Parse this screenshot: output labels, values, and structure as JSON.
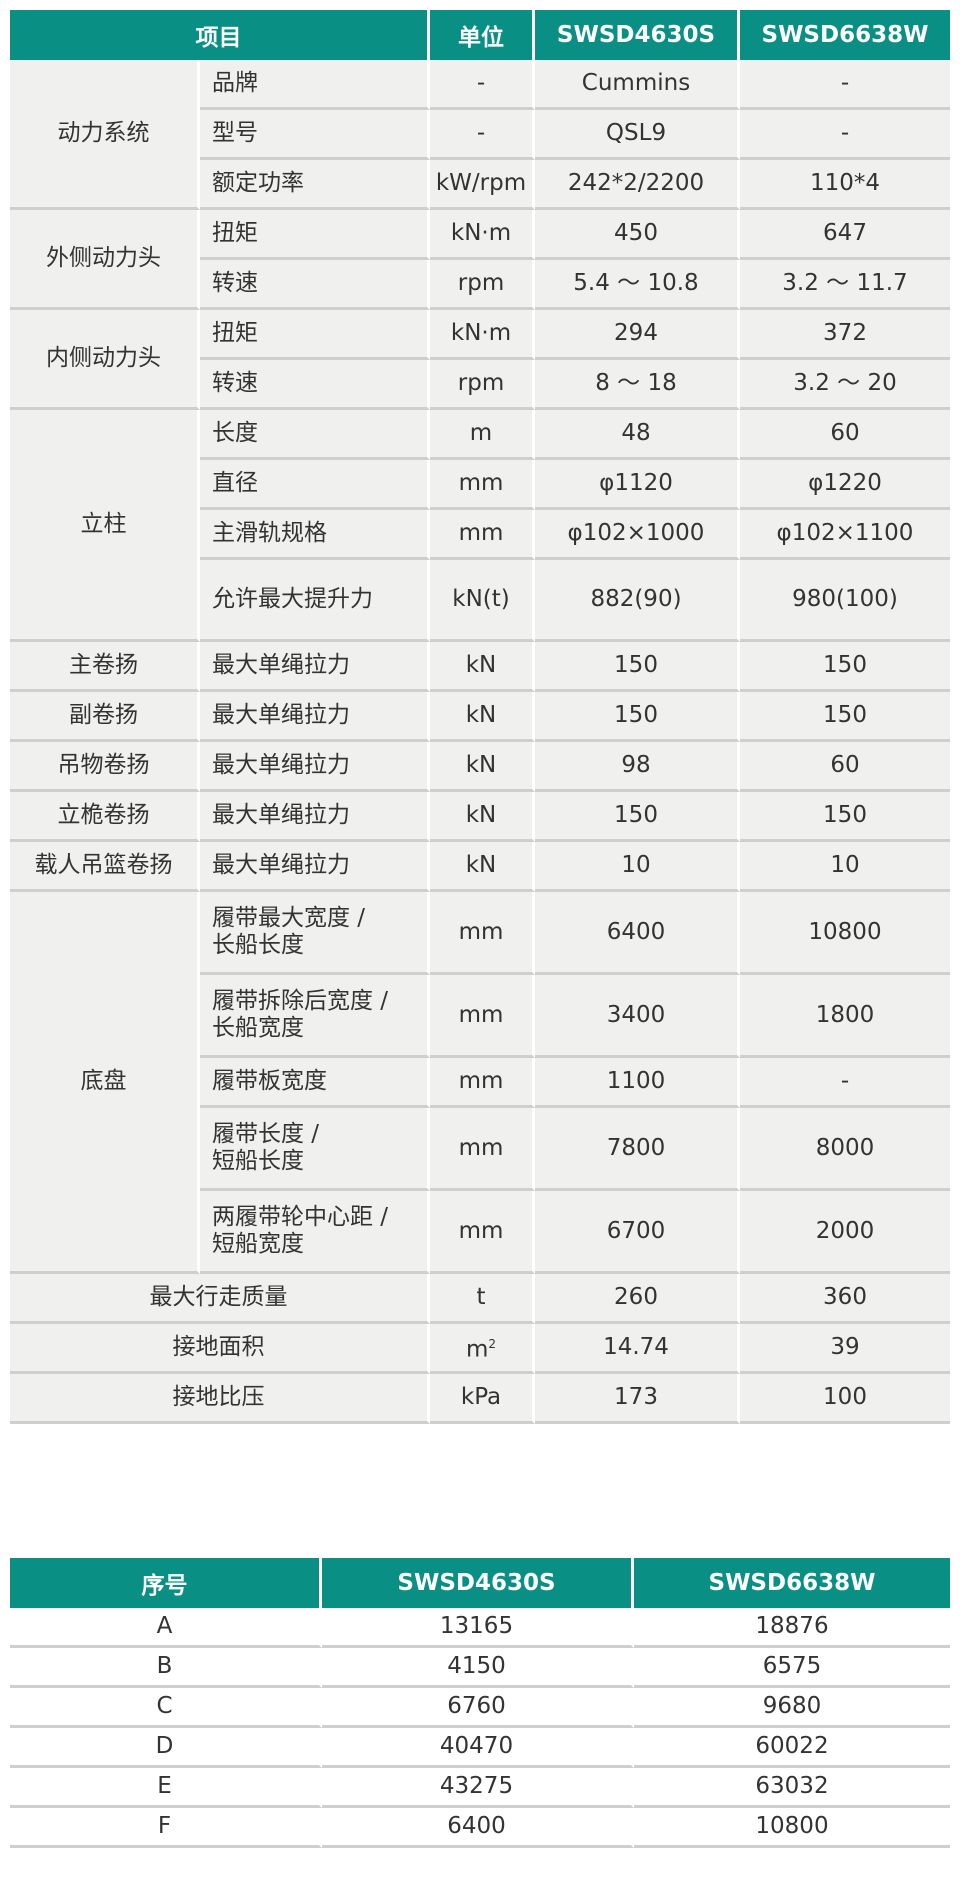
{
  "spec_table": {
    "headers": [
      "项目",
      "单位",
      "SWSD4630S",
      "SWSD6638W"
    ],
    "groups": [
      {
        "name": "动力系统",
        "rows": [
          {
            "item": "品牌",
            "unit": "-",
            "s": "Cummins",
            "w": "-"
          },
          {
            "item": "型号",
            "unit": "-",
            "s": "QSL9",
            "w": "-"
          },
          {
            "item": "额定功率",
            "unit": "kW/rpm",
            "s": "242*2/2200",
            "w": "110*4"
          }
        ]
      },
      {
        "name": "外侧动力头",
        "rows": [
          {
            "item": "扭矩",
            "unit": "kN·m",
            "s": "450",
            "w": "647"
          },
          {
            "item": "转速",
            "unit": "rpm",
            "s": "5.4 ～ 10.8",
            "w": "3.2 ～ 11.7"
          }
        ]
      },
      {
        "name": "内侧动力头",
        "rows": [
          {
            "item": "扭矩",
            "unit": "kN·m",
            "s": "294",
            "w": "372"
          },
          {
            "item": "转速",
            "unit": "rpm",
            "s": "8 ～ 18",
            "w": "3.2 ～ 20"
          }
        ]
      },
      {
        "name": "立柱",
        "rows": [
          {
            "item": "长度",
            "unit": "m",
            "s": "48",
            "w": "60"
          },
          {
            "item": "直径",
            "unit": "mm",
            "s": "φ1120",
            "w": "φ1220"
          },
          {
            "item": "主滑轨规格",
            "unit": "mm",
            "s": "φ102×1000",
            "w": "φ102×1100"
          },
          {
            "item": "允许最大提升力",
            "unit": "kN(t)",
            "s": "882(90)",
            "w": "980(100)"
          }
        ]
      },
      {
        "name": "主卷扬",
        "rows": [
          {
            "item": "最大单绳拉力",
            "unit": "kN",
            "s": "150",
            "w": "150"
          }
        ]
      },
      {
        "name": "副卷扬",
        "rows": [
          {
            "item": "最大单绳拉力",
            "unit": "kN",
            "s": "150",
            "w": "150"
          }
        ]
      },
      {
        "name": "吊物卷扬",
        "rows": [
          {
            "item": "最大单绳拉力",
            "unit": "kN",
            "s": "98",
            "w": "60"
          }
        ]
      },
      {
        "name": "立桅卷扬",
        "rows": [
          {
            "item": "最大单绳拉力",
            "unit": "kN",
            "s": "150",
            "w": "150"
          }
        ]
      },
      {
        "name": "载人吊篮卷扬",
        "rows": [
          {
            "item": "最大单绳拉力",
            "unit": "kN",
            "s": "10",
            "w": "10"
          }
        ]
      },
      {
        "name": "底盘",
        "rows": [
          {
            "item": "履带最大宽度 /",
            "item2": "长船长度",
            "unit": "mm",
            "s": "6400",
            "w": "10800"
          },
          {
            "item": "履带拆除后宽度 /",
            "item2": "长船宽度",
            "unit": "mm",
            "s": "3400",
            "w": "1800"
          },
          {
            "item": "履带板宽度",
            "unit": "mm",
            "s": "1100",
            "w": "-"
          },
          {
            "item": "履带长度 /",
            "item2": "短船长度",
            "unit": "mm",
            "s": "7800",
            "w": "8000"
          },
          {
            "item": "两履带轮中心距 /",
            "item2": "短船宽度",
            "unit": "mm",
            "s": "6700",
            "w": "2000"
          }
        ]
      }
    ],
    "single_rows": [
      {
        "item": "最大行走质量",
        "unit": "t",
        "s": "260",
        "w": "360"
      },
      {
        "item": "接地面积",
        "unit": "m",
        "unit_sup": "2",
        "s": "14.74",
        "w": "39"
      },
      {
        "item": "接地比压",
        "unit": "kPa",
        "s": "173",
        "w": "100"
      }
    ]
  },
  "dims_table": {
    "headers": [
      "序号",
      "SWSD4630S",
      "SWSD6638W"
    ],
    "rows": [
      [
        "A",
        "13165",
        "18876"
      ],
      [
        "B",
        "4150",
        "6575"
      ],
      [
        "C",
        "6760",
        "9680"
      ],
      [
        "D",
        "40470",
        "60022"
      ],
      [
        "E",
        "43275",
        "63032"
      ],
      [
        "F",
        "6400",
        "10800"
      ]
    ]
  },
  "colors": {
    "header_bg": "#0a8f84",
    "cell_bg": "#f0f0ef"
  }
}
